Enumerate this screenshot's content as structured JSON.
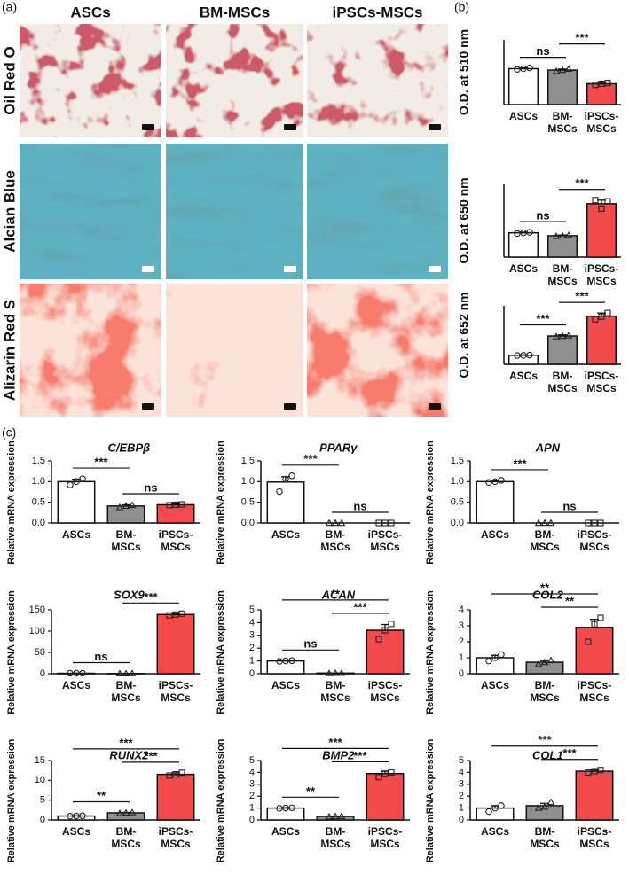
{
  "panel_labels": [
    "(a)",
    "(b)",
    "(c)"
  ],
  "micrographs": {
    "columns": [
      "ASCs",
      "BM-MSCs",
      "iPSCs-MSCs"
    ],
    "rows": [
      "Oil Red O",
      "Alcian Blue",
      "Alizarin Red S"
    ]
  },
  "chart_data": [
    {
      "type": "bar",
      "ylabel": "O.D. at 510 nm",
      "categories": [
        [
          "ASCs"
        ],
        [
          "BM-",
          "MSCs"
        ],
        [
          "iPSCs-",
          "MSCs"
        ]
      ],
      "colors": [
        "#ffffff",
        "#8f8f8f",
        "#f24a4a"
      ],
      "values": [
        1.0,
        0.96,
        0.58
      ],
      "errors": [
        0.02,
        0.03,
        0.03
      ],
      "points": [
        [
          0.98,
          1.0,
          1.02
        ],
        [
          0.93,
          0.96,
          0.99
        ],
        [
          0.55,
          0.58,
          0.6
        ]
      ],
      "ylim": [
        0,
        1.8
      ],
      "comparisons": [
        {
          "groups": [
            0,
            1
          ],
          "label": "ns"
        },
        {
          "groups": [
            1,
            2
          ],
          "label": "***"
        }
      ]
    },
    {
      "type": "bar",
      "ylabel": "O.D. at 650 nm",
      "categories": [
        [
          "ASCs"
        ],
        [
          "BM-",
          "MSCs"
        ],
        [
          "iPSCs-",
          "MSCs"
        ]
      ],
      "colors": [
        "#ffffff",
        "#8f8f8f",
        "#f24a4a"
      ],
      "values": [
        1.0,
        0.88,
        2.2
      ],
      "errors": [
        0.03,
        0.03,
        0.15
      ],
      "points": [
        [
          0.97,
          1.0,
          1.02
        ],
        [
          0.86,
          0.88,
          0.9
        ],
        [
          2.35,
          2.0,
          2.3
        ]
      ],
      "ylim": [
        0,
        3
      ],
      "comparisons": [
        {
          "groups": [
            0,
            1
          ],
          "label": "ns"
        },
        {
          "groups": [
            1,
            2
          ],
          "label": "***"
        }
      ]
    },
    {
      "type": "bar",
      "ylabel": "O.D. at 652 nm",
      "categories": [
        [
          "ASCs"
        ],
        [
          "BM-",
          "MSCs"
        ],
        [
          "iPSCs-",
          "MSCs"
        ]
      ],
      "colors": [
        "#ffffff",
        "#8f8f8f",
        "#f24a4a"
      ],
      "values": [
        1.0,
        3.15,
        5.35
      ],
      "errors": [
        0.05,
        0.12,
        0.35
      ],
      "points": [
        [
          0.98,
          1.0,
          1.02
        ],
        [
          3.1,
          3.15,
          3.2
        ],
        [
          5.0,
          5.3,
          5.7
        ]
      ],
      "ylim": [
        0,
        6.5
      ],
      "comparisons": [
        {
          "groups": [
            0,
            1
          ],
          "label": "***"
        },
        {
          "groups": [
            1,
            2
          ],
          "label": "***"
        }
      ]
    },
    {
      "type": "bar",
      "title": "C/EBPβ",
      "ylabel": "Relative mRNA expression",
      "categories": [
        [
          "ASCs"
        ],
        [
          "BM-",
          "MSCs"
        ],
        [
          "iPSCs-",
          "MSCs"
        ]
      ],
      "colors": [
        "#ffffff",
        "#8f8f8f",
        "#f24a4a"
      ],
      "values": [
        1.0,
        0.41,
        0.44
      ],
      "errors": [
        0.06,
        0.03,
        0.02
      ],
      "points": [
        [
          0.92,
          1.0,
          1.07
        ],
        [
          0.38,
          0.41,
          0.43
        ],
        [
          0.43,
          0.44,
          0.45
        ]
      ],
      "ylim": [
        0,
        1.5
      ],
      "yticks": [
        {
          "value": 0,
          "label": "0.0"
        },
        {
          "value": 0.5,
          "label": "0.5"
        },
        {
          "value": 1,
          "label": "1.0"
        },
        {
          "value": 1.5,
          "label": "1.5"
        }
      ],
      "comparisons": [
        {
          "groups": [
            1,
            2
          ],
          "label": "ns"
        },
        {
          "groups": [
            0,
            1
          ],
          "label": "***"
        }
      ]
    },
    {
      "type": "bar",
      "title": "PPARγ",
      "ylabel": "Relative mRNA expression",
      "categories": [
        [
          "ASCs"
        ],
        [
          "BM-",
          "MSCs"
        ],
        [
          "iPSCs-",
          "MSCs"
        ]
      ],
      "colors": [
        "#ffffff",
        "#8f8f8f",
        "#f24a4a"
      ],
      "values": [
        0.99,
        0,
        0
      ],
      "errors": [
        0.13,
        0,
        0
      ],
      "points": [
        [
          0.76,
          1.06,
          1.14
        ],
        [
          0,
          0,
          0
        ],
        [
          0,
          0,
          0
        ]
      ],
      "ylim": [
        0,
        1.5
      ],
      "yticks": [
        {
          "value": 0,
          "label": "0.0"
        },
        {
          "value": 0.5,
          "label": "0.5"
        },
        {
          "value": 1,
          "label": "1.0"
        },
        {
          "value": 1.5,
          "label": "1.5"
        }
      ],
      "comparisons": [
        {
          "groups": [
            1,
            2
          ],
          "label": "ns"
        },
        {
          "groups": [
            0,
            1
          ],
          "label": "***"
        }
      ]
    },
    {
      "type": "bar",
      "title": "APN",
      "ylabel": "Relative mRNA expression",
      "categories": [
        [
          "ASCs"
        ],
        [
          "BM-",
          "MSCs"
        ],
        [
          "iPSCs-",
          "MSCs"
        ]
      ],
      "colors": [
        "#ffffff",
        "#8f8f8f",
        "#f24a4a"
      ],
      "values": [
        1.0,
        0,
        0
      ],
      "errors": [
        0.02,
        0,
        0
      ],
      "points": [
        [
          0.98,
          1.0,
          1.03
        ],
        [
          0,
          0,
          0
        ],
        [
          0,
          0,
          0
        ]
      ],
      "ylim": [
        0,
        1.5
      ],
      "yticks": [
        {
          "value": 0,
          "label": "0.0"
        },
        {
          "value": 0.5,
          "label": "0.5"
        },
        {
          "value": 1,
          "label": "1.0"
        },
        {
          "value": 1.5,
          "label": "1.5"
        }
      ],
      "comparisons": [
        {
          "groups": [
            1,
            2
          ],
          "label": "ns"
        },
        {
          "groups": [
            0,
            1
          ],
          "label": "***"
        }
      ]
    },
    {
      "type": "bar",
      "title": "SOX9",
      "ylabel": "Relative mRNA expression",
      "categories": [
        [
          "ASCs"
        ],
        [
          "BM-",
          "MSCs"
        ],
        [
          "iPSCs-",
          "MSCs"
        ]
      ],
      "colors": [
        "#ffffff",
        "#8f8f8f",
        "#f24a4a"
      ],
      "values": [
        1,
        0.5,
        139
      ],
      "errors": [
        0,
        0,
        2
      ],
      "points": [
        [
          1,
          1,
          1
        ],
        [
          0.3,
          0.5,
          0.7
        ],
        [
          137,
          139,
          141
        ]
      ],
      "ylim": [
        0,
        150
      ],
      "yticks": [
        0,
        50,
        100,
        150
      ],
      "comparisons": [
        {
          "groups": [
            0,
            1
          ],
          "label": "ns"
        },
        {
          "groups": [
            1,
            2
          ],
          "label": "***"
        }
      ]
    },
    {
      "type": "bar",
      "title": "ACAN",
      "ylabel": "Relative mRNA expression",
      "categories": [
        [
          "ASCs"
        ],
        [
          "BM-",
          "MSCs"
        ],
        [
          "iPSCs-",
          "MSCs"
        ]
      ],
      "colors": [
        "#ffffff",
        "#8f8f8f",
        "#f24a4a"
      ],
      "values": [
        1.0,
        0.05,
        3.4
      ],
      "errors": [
        0.02,
        0.01,
        0.45
      ],
      "points": [
        [
          0.97,
          1.0,
          1.02
        ],
        [
          0.03,
          0.05,
          0.06
        ],
        [
          2.7,
          3.4,
          3.9
        ]
      ],
      "ylim": [
        0,
        5
      ],
      "yticks": [
        0,
        1,
        2,
        3,
        4,
        5
      ],
      "comparisons": [
        {
          "groups": [
            0,
            1
          ],
          "label": "ns"
        },
        {
          "groups": [
            1,
            2
          ],
          "label": "***"
        },
        {
          "groups": [
            0,
            2
          ],
          "label": "**"
        }
      ]
    },
    {
      "type": "bar",
      "title": "COL2",
      "ylabel": "Relative mRNA expression",
      "categories": [
        [
          "ASCs"
        ],
        [
          "BM-",
          "MSCs"
        ],
        [
          "iPSCs-",
          "MSCs"
        ]
      ],
      "colors": [
        "#ffffff",
        "#8f8f8f",
        "#f24a4a"
      ],
      "values": [
        1.0,
        0.72,
        2.9
      ],
      "errors": [
        0.15,
        0.1,
        0.5
      ],
      "points": [
        [
          0.8,
          1.0,
          1.2
        ],
        [
          0.6,
          0.72,
          0.84
        ],
        [
          2.0,
          3.1,
          3.5
        ]
      ],
      "ylim": [
        0,
        4
      ],
      "yticks": [
        0,
        1,
        2,
        3,
        4
      ],
      "comparisons": [
        {
          "groups": [
            1,
            2
          ],
          "label": "**"
        },
        {
          "groups": [
            0,
            2
          ],
          "label": "**"
        }
      ]
    },
    {
      "type": "bar",
      "title": "RUNX2",
      "ylabel": "Relative mRNA expression",
      "categories": [
        [
          "ASCs"
        ],
        [
          "BM-",
          "MSCs"
        ],
        [
          "iPSCs-",
          "MSCs"
        ]
      ],
      "colors": [
        "#ffffff",
        "#8f8f8f",
        "#f24a4a"
      ],
      "values": [
        1.0,
        1.8,
        11.5
      ],
      "errors": [
        0.05,
        0.1,
        0.4
      ],
      "points": [
        [
          0.95,
          1.0,
          1.05
        ],
        [
          1.7,
          1.8,
          1.9
        ],
        [
          11.2,
          11.5,
          11.9
        ]
      ],
      "ylim": [
        0,
        15
      ],
      "yticks": [
        0,
        5,
        10,
        15
      ],
      "comparisons": [
        {
          "groups": [
            0,
            1
          ],
          "label": "**"
        },
        {
          "groups": [
            1,
            2
          ],
          "label": "***"
        },
        {
          "groups": [
            0,
            2
          ],
          "label": "***"
        }
      ]
    },
    {
      "type": "bar",
      "title": "BMP2",
      "ylabel": "Relative mRNA expression",
      "categories": [
        [
          "ASCs"
        ],
        [
          "BM-",
          "MSCs"
        ],
        [
          "iPSCs-",
          "MSCs"
        ]
      ],
      "colors": [
        "#ffffff",
        "#8f8f8f",
        "#f24a4a"
      ],
      "values": [
        1.0,
        0.3,
        3.9
      ],
      "errors": [
        0.02,
        0.02,
        0.2
      ],
      "points": [
        [
          0.98,
          1.0,
          1.02
        ],
        [
          0.28,
          0.3,
          0.32
        ],
        [
          3.6,
          3.9,
          4.0
        ]
      ],
      "ylim": [
        0,
        5
      ],
      "yticks": [
        0,
        1,
        2,
        3,
        4,
        5
      ],
      "comparisons": [
        {
          "groups": [
            0,
            1
          ],
          "label": "**"
        },
        {
          "groups": [
            1,
            2
          ],
          "label": "***"
        },
        {
          "groups": [
            0,
            2
          ],
          "label": "***"
        }
      ]
    },
    {
      "type": "bar",
      "title": "COL1",
      "ylabel": "Relative mRNA expression",
      "categories": [
        [
          "ASCs"
        ],
        [
          "BM-",
          "MSCs"
        ],
        [
          "iPSCs-",
          "MSCs"
        ]
      ],
      "colors": [
        "#ffffff",
        "#8f8f8f",
        "#f24a4a"
      ],
      "values": [
        1.0,
        1.2,
        4.1
      ],
      "errors": [
        0.2,
        0.2,
        0.1
      ],
      "points": [
        [
          0.7,
          1.0,
          1.2
        ],
        [
          1.0,
          1.1,
          1.5
        ],
        [
          4.0,
          4.1,
          4.2
        ]
      ],
      "ylim": [
        0,
        5
      ],
      "yticks": [
        0,
        1,
        2,
        3,
        4,
        5
      ],
      "comparisons": [
        {
          "groups": [
            1,
            2
          ],
          "label": "***"
        },
        {
          "groups": [
            0,
            2
          ],
          "label": "***"
        }
      ]
    }
  ]
}
